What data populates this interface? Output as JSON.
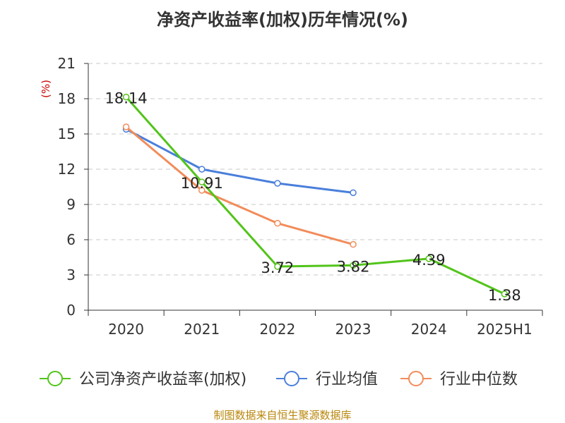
{
  "chart_data": {
    "type": "line",
    "title": "净资产收益率(加权)历年情况(%)",
    "ylabel": "(%)",
    "xlabel": "",
    "categories": [
      "2020",
      "2021",
      "2022",
      "2023",
      "2024",
      "2025H1"
    ],
    "ylim": [
      0,
      21
    ],
    "yticks": [
      0,
      3,
      6,
      9,
      12,
      15,
      18,
      21
    ],
    "grid": true,
    "legend_position": "bottom",
    "series": [
      {
        "name": "公司净资产收益率(加权)",
        "color": "#52c41a",
        "values": [
          18.14,
          10.91,
          3.72,
          3.82,
          4.39,
          1.38
        ],
        "labels": [
          "18.14",
          "10.91",
          "3.72",
          "3.82",
          "4.39",
          "1.38"
        ]
      },
      {
        "name": "行业均值",
        "color": "#4a7fdb",
        "values": [
          15.4,
          12.0,
          10.8,
          10.0,
          null,
          null
        ]
      },
      {
        "name": "行业中位数",
        "color": "#f28c5a",
        "values": [
          15.6,
          10.2,
          7.4,
          5.6,
          null,
          null
        ]
      }
    ],
    "source": "制图数据来自恒生聚源数据库"
  }
}
